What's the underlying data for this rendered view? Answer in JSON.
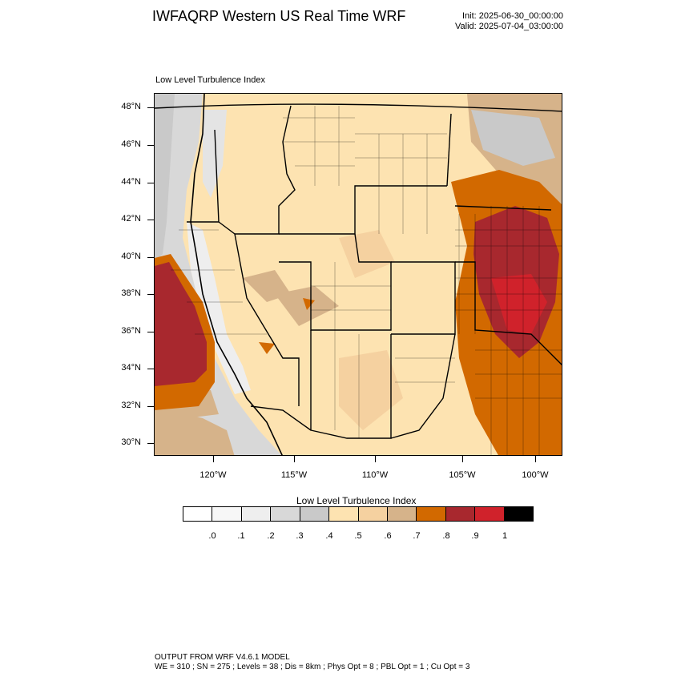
{
  "title": "IWFAQRP Western US Real Time WRF",
  "init": "Init: 2025-06-30_00:00:00",
  "valid": "Valid: 2025-07-04_03:00:00",
  "subtitle": "Low Level Turbulence Index",
  "map": {
    "lat_labels": [
      "48°N",
      "46°N",
      "44°N",
      "42°N",
      "40°N",
      "38°N",
      "36°N",
      "34°N",
      "32°N",
      "30°N"
    ],
    "lon_labels": [
      "120°W",
      "115°W",
      "110°W",
      "105°W",
      "100°W"
    ]
  },
  "colorbar": {
    "title": "Low Level Turbulence Index",
    "labels": [
      ".0",
      ".1",
      ".2",
      ".3",
      ".4",
      ".5",
      ".6",
      ".7",
      ".8",
      ".9",
      "1"
    ],
    "colors": [
      "#ffffff",
      "#f7f7f7",
      "#eeeeee",
      "#d8d8d8",
      "#c9c9c9",
      "#fde3b1",
      "#f5d1a0",
      "#d6b38a",
      "#d26900",
      "#a8282e",
      "#d0222b",
      "#000000"
    ]
  },
  "footer": {
    "line1": "OUTPUT FROM WRF V4.6.1 MODEL",
    "line2": "WE = 310 ; SN = 275 ; Levels = 38 ; Dis = 8km ; Phys Opt = 8 ; PBL Opt = 1 ; Cu Opt = 3"
  }
}
